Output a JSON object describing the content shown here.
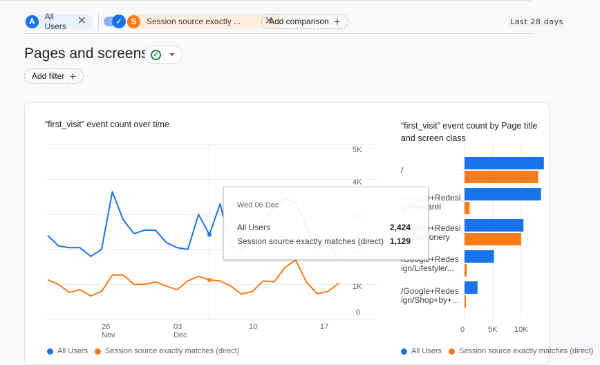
{
  "filter_bar": {
    "comparisons": [
      {
        "badge": "A",
        "label": "All Users",
        "color": "#1a73e8"
      },
      {
        "badge": "S",
        "label": "Session source exactly ...",
        "color": "#fa7b17",
        "toggle_enabled": true
      }
    ],
    "add_comparison_label": "Add comparison",
    "date_range": "Last 28 days"
  },
  "page": {
    "title": "Pages and screens",
    "status_icon": "check-circle-icon",
    "add_filter_label": "Add filter"
  },
  "line_chart": {
    "title": "“first_visit” event count over time",
    "y_ticks": [
      "5K",
      "4K",
      "3K",
      "2K",
      "1K",
      "0"
    ],
    "x_ticks": [
      {
        "day": "26",
        "month": "Nov"
      },
      {
        "day": "03",
        "month": "Dec"
      },
      {
        "day": "10",
        "month": ""
      },
      {
        "day": "17",
        "month": ""
      }
    ],
    "legend": [
      "All Users",
      "Session source exactly matches (direct)"
    ],
    "tooltip": {
      "date": "Wed 06 Dec",
      "rows": [
        {
          "label": "All Users",
          "value": "2,424"
        },
        {
          "label": "Session source exactly matches (direct)",
          "value": "1,129"
        }
      ]
    }
  },
  "bar_chart": {
    "title": "“first_visit” event count by Page title and screen class",
    "categories": [
      "/",
      "/Google+Redesign/Apparel",
      "/Google+Redesign/Stationery",
      "/Google+Redesign/Lifestyle/...",
      "/Google+Redesign/Shop+by+..."
    ],
    "category_labels": [
      [
        "/"
      ],
      [
        "/Google+Redesi",
        "gn/Apparel"
      ],
      [
        "/Google+Redesi",
        "gn/Stationery"
      ],
      [
        "/Google+Redes",
        "ign/Lifestyle/..."
      ],
      [
        "/Google+Redes",
        "ign/Shop+by+..."
      ]
    ],
    "x_ticks": [
      "0",
      "5K",
      "10K"
    ],
    "legend": [
      "All Users",
      "Session source exactly matches (direct)"
    ]
  },
  "chart_data": [
    {
      "type": "line",
      "title": "“first_visit” event count over time",
      "xlabel": "",
      "ylabel": "",
      "ylim": [
        0,
        5000
      ],
      "grid": true,
      "legend_position": "bottom",
      "x": [
        "Nov 21",
        "Nov 22",
        "Nov 23",
        "Nov 24",
        "Nov 25",
        "Nov 26",
        "Nov 27",
        "Nov 28",
        "Nov 29",
        "Nov 30",
        "Dec 01",
        "Dec 02",
        "Dec 03",
        "Dec 04",
        "Dec 05",
        "Dec 06",
        "Dec 07",
        "Dec 08",
        "Dec 09",
        "Dec 10",
        "Dec 11",
        "Dec 12",
        "Dec 13",
        "Dec 14",
        "Dec 15",
        "Dec 16",
        "Dec 17",
        "Dec 18"
      ],
      "series": [
        {
          "name": "All Users",
          "color": "#1a73e8",
          "values": [
            2400,
            2100,
            2050,
            2050,
            1800,
            2000,
            3650,
            2850,
            2450,
            2550,
            2550,
            2200,
            2050,
            2000,
            3000,
            2424,
            3300,
            2100,
            2000,
            2300,
            2800,
            3200,
            3450,
            3350,
            2650,
            2000,
            2200,
            1700
          ]
        },
        {
          "name": "Session source exactly matches (direct)",
          "color": "#fa7b17",
          "values": [
            1130,
            1000,
            770,
            850,
            670,
            800,
            1270,
            1270,
            1000,
            1000,
            1070,
            950,
            850,
            1100,
            1230,
            1129,
            1100,
            950,
            720,
            800,
            1100,
            1070,
            1480,
            1700,
            1070,
            730,
            800,
            1030
          ]
        }
      ]
    },
    {
      "type": "bar",
      "orientation": "horizontal",
      "title": "“first_visit” event count by Page title and screen class",
      "categories": [
        "/",
        "/Google+Redesign/Apparel",
        "/Google+Redesign/Stationery",
        "/Google+Redesign/Lifestyle/...",
        "/Google+Redesign/Shop+by+..."
      ],
      "xlim": [
        0,
        12000
      ],
      "x_ticks": [
        "0",
        "5K",
        "10K"
      ],
      "series": [
        {
          "name": "All Users",
          "color": "#1a73e8",
          "values": [
            14000,
            13500,
            10400,
            5200,
            2300
          ]
        },
        {
          "name": "Session source exactly matches (direct)",
          "color": "#fa7b17",
          "values": [
            13000,
            900,
            10000,
            400,
            100
          ]
        }
      ]
    }
  ]
}
